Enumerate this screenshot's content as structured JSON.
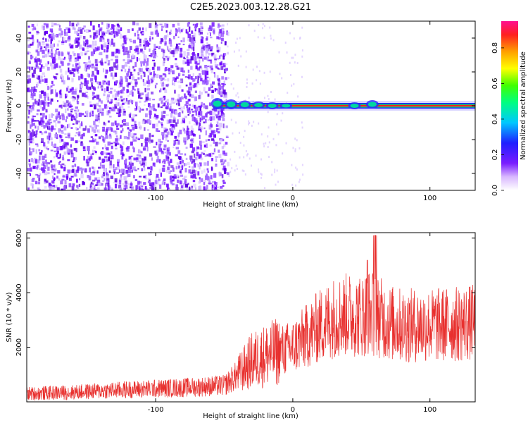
{
  "title": "C2E5.2023.003.12.28.G21",
  "chart_data": [
    {
      "type": "heatmap",
      "xlabel": "Height of straight line (km)",
      "ylabel": "Frequency (Hz)",
      "xlim": [
        -194,
        133
      ],
      "ylim": [
        -50,
        50
      ],
      "xticks": [
        -100,
        0,
        100
      ],
      "yticks": [
        -40,
        -20,
        0,
        20,
        40
      ],
      "noise_region_x": [
        -194,
        -48
      ],
      "signal_line_hz": 0,
      "colorbar": {
        "label": "Normalized spectral amplitude",
        "range": [
          0.0,
          0.95
        ],
        "ticks": [
          0.0,
          0.2,
          0.4,
          0.6,
          0.8
        ]
      }
    },
    {
      "type": "line",
      "xlabel": "Height of straight line (km)",
      "ylabel": "SNR (10 * v/v)",
      "xlim": [
        -194,
        133
      ],
      "ylim": [
        0,
        6200
      ],
      "xticks": [
        -100,
        0,
        100
      ],
      "yticks": [
        2000,
        4000,
        6000
      ],
      "series": [
        {
          "color": "#e8302e",
          "x": [
            -194,
            -160,
            -120,
            -80,
            -50,
            -40,
            -30,
            -20,
            -10,
            0,
            10,
            20,
            30,
            40,
            50,
            55,
            60,
            70,
            80,
            100,
            120,
            133
          ],
          "y": [
            300,
            350,
            450,
            520,
            600,
            1000,
            1500,
            1700,
            1850,
            2000,
            2400,
            2800,
            3100,
            3200,
            3150,
            3300,
            3200,
            2900,
            2800,
            2800,
            2850,
            2900
          ]
        }
      ]
    }
  ]
}
